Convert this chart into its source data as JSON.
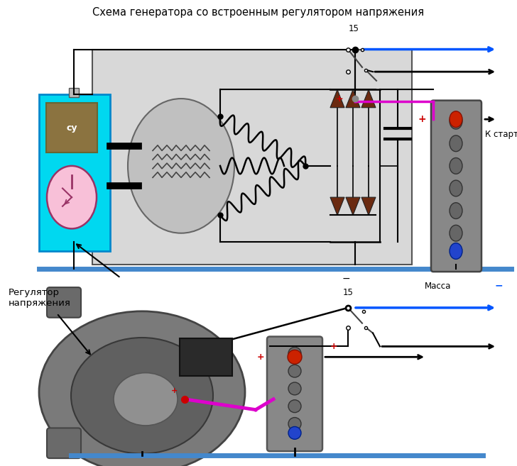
{
  "title_top": "Схема генератора со встроенным регулятором напряжения",
  "label_massa": "Масса",
  "label_starter": "К стартеру",
  "label_reg": "Регулятор\nнапряжения",
  "label_15": "15",
  "label_su": "су",
  "label_plus": "+",
  "label_minus": "−",
  "bg_color": "#ffffff",
  "gen_box_color": "#d8d8d8",
  "cyan_box_color": "#00d8f0",
  "su_box_color": "#8b7340",
  "transistor_fill": "#f8c0d8",
  "rotor_color": "#c0c0c0",
  "battery_color": "#909090",
  "diode_color": "#6b2a10",
  "wire_black": "#000000",
  "wire_blue": "#0055ff",
  "wire_magenta": "#dd00cc",
  "wire_red": "#cc0000",
  "ground_bar_color": "#4488cc",
  "switch_color": "#444444"
}
